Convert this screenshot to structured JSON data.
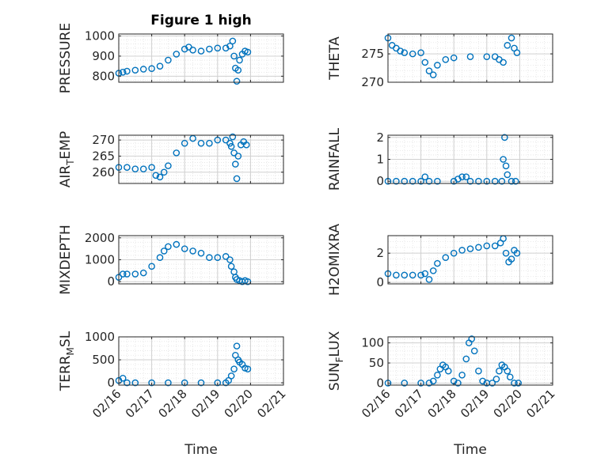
{
  "window": {},
  "colors": {
    "marker": "#0072BD",
    "axis": "#262626",
    "grid": "#d0d0d0",
    "background": "#ffffff"
  },
  "date_ticks": [
    "02/16",
    "02/17",
    "02/18",
    "02/19",
    "02/20",
    "02/21"
  ],
  "chart_data": [
    {
      "type": "scatter",
      "title": "Figure 1 high",
      "xlabel": "",
      "ylabel": "PRESSURE",
      "xlim": [
        "02/16",
        "02/21"
      ],
      "ylim": [
        770,
        1010
      ],
      "yticks": [
        800,
        900,
        1000
      ],
      "grid": true,
      "minor_grid": true,
      "xticklabels_shown": false,
      "x": [
        "02/16 00:00",
        "02/16 03:00",
        "02/16 06:00",
        "02/16 12:00",
        "02/16 18:00",
        "02/17 00:00",
        "02/17 06:00",
        "02/17 12:00",
        "02/17 18:00",
        "02/18 00:00",
        "02/18 03:00",
        "02/18 06:00",
        "02/18 12:00",
        "02/18 18:00",
        "02/19 00:00",
        "02/19 06:00",
        "02/19 09:00",
        "02/19 11:00",
        "02/19 12:00",
        "02/19 13:00",
        "02/19 14:00",
        "02/19 15:00",
        "02/19 16:00",
        "02/19 18:00",
        "02/19 20:00",
        "02/19 22:00"
      ],
      "y": [
        815,
        820,
        825,
        830,
        835,
        838,
        850,
        880,
        910,
        935,
        945,
        930,
        925,
        935,
        940,
        940,
        950,
        975,
        900,
        840,
        775,
        830,
        880,
        910,
        925,
        920
      ]
    },
    {
      "type": "scatter",
      "title": "",
      "xlabel": "",
      "ylabel": "THETA",
      "xlim": [
        "02/16",
        "02/21"
      ],
      "ylim": [
        270,
        278.5
      ],
      "yticks": [
        270,
        275
      ],
      "grid": true,
      "minor_grid": true,
      "xticklabels_shown": false,
      "x": [
        "02/16 00:00",
        "02/16 03:00",
        "02/16 06:00",
        "02/16 09:00",
        "02/16 12:00",
        "02/16 18:00",
        "02/17 00:00",
        "02/17 03:00",
        "02/17 06:00",
        "02/17 09:00",
        "02/17 12:00",
        "02/17 18:00",
        "02/18 00:00",
        "02/18 12:00",
        "02/19 00:00",
        "02/19 06:00",
        "02/19 09:00",
        "02/19 12:00",
        "02/19 15:00",
        "02/19 18:00",
        "02/19 20:00",
        "02/19 22:00"
      ],
      "y": [
        277.8,
        276.5,
        276,
        275.5,
        275.2,
        275,
        275.2,
        273.5,
        272,
        271.3,
        273,
        274,
        274.3,
        274.5,
        274.5,
        274.5,
        274,
        273.5,
        276.5,
        277.8,
        276,
        275.2
      ]
    },
    {
      "type": "scatter",
      "title": "",
      "xlabel": "",
      "ylabel": "AIR_TEMP",
      "xlim": [
        "02/16",
        "02/21"
      ],
      "ylim": [
        256.5,
        271.5
      ],
      "yticks": [
        260,
        265,
        270
      ],
      "grid": true,
      "minor_grid": true,
      "xticklabels_shown": false,
      "x": [
        "02/16 00:00",
        "02/16 06:00",
        "02/16 12:00",
        "02/16 18:00",
        "02/17 00:00",
        "02/17 03:00",
        "02/17 06:00",
        "02/17 09:00",
        "02/17 12:00",
        "02/17 18:00",
        "02/18 00:00",
        "02/18 06:00",
        "02/18 12:00",
        "02/18 18:00",
        "02/19 00:00",
        "02/19 06:00",
        "02/19 09:00",
        "02/19 10:00",
        "02/19 11:00",
        "02/19 12:00",
        "02/19 13:00",
        "02/19 14:00",
        "02/19 15:00",
        "02/19 17:00",
        "02/19 19:00",
        "02/19 21:00"
      ],
      "y": [
        261.5,
        261.5,
        261,
        261,
        261.5,
        259,
        258.5,
        260,
        262,
        266,
        269,
        270.5,
        269,
        269,
        270,
        270,
        269,
        268,
        271,
        266,
        262.5,
        258,
        265,
        268.5,
        269.5,
        268.5
      ]
    },
    {
      "type": "scatter",
      "title": "",
      "xlabel": "",
      "ylabel": "RAINFALL",
      "xlim": [
        "02/16",
        "02/21"
      ],
      "ylim": [
        -0.1,
        2.1
      ],
      "yticks": [
        0,
        1,
        2
      ],
      "grid": true,
      "minor_grid": true,
      "xticklabels_shown": false,
      "x": [
        "02/16 00:00",
        "02/16 06:00",
        "02/16 12:00",
        "02/16 18:00",
        "02/17 00:00",
        "02/17 03:00",
        "02/17 06:00",
        "02/17 12:00",
        "02/18 00:00",
        "02/18 03:00",
        "02/18 06:00",
        "02/18 09:00",
        "02/18 12:00",
        "02/18 18:00",
        "02/19 00:00",
        "02/19 06:00",
        "02/19 11:00",
        "02/19 12:00",
        "02/19 13:00",
        "02/19 14:00",
        "02/19 15:00",
        "02/19 18:00",
        "02/19 21:00"
      ],
      "y": [
        0,
        0,
        0,
        0,
        0,
        0.2,
        0,
        0,
        0,
        0.1,
        0.2,
        0.2,
        0,
        0,
        0,
        0,
        0,
        1.0,
        2.0,
        0.7,
        0.3,
        0,
        0
      ]
    },
    {
      "type": "scatter",
      "title": "",
      "xlabel": "",
      "ylabel": "MIXDEPTH",
      "xlim": [
        "02/16",
        "02/21"
      ],
      "ylim": [
        -100,
        2100
      ],
      "yticks": [
        0,
        1000,
        2000
      ],
      "grid": true,
      "minor_grid": true,
      "xticklabels_shown": false,
      "x": [
        "02/16 00:00",
        "02/16 03:00",
        "02/16 06:00",
        "02/16 12:00",
        "02/16 18:00",
        "02/17 00:00",
        "02/17 06:00",
        "02/17 09:00",
        "02/17 12:00",
        "02/17 18:00",
        "02/18 00:00",
        "02/18 06:00",
        "02/18 12:00",
        "02/18 18:00",
        "02/19 00:00",
        "02/19 06:00",
        "02/19 09:00",
        "02/19 10:00",
        "02/19 12:00",
        "02/19 13:00",
        "02/19 14:00",
        "02/19 16:00",
        "02/19 18:00",
        "02/19 20:00",
        "02/19 22:00"
      ],
      "y": [
        200,
        350,
        350,
        350,
        400,
        700,
        1100,
        1400,
        1600,
        1700,
        1500,
        1400,
        1300,
        1100,
        1100,
        1150,
        1000,
        700,
        450,
        200,
        100,
        50,
        0,
        50,
        0
      ]
    },
    {
      "type": "scatter",
      "title": "",
      "xlabel": "",
      "ylabel": "H2OMIXRA",
      "xlim": [
        "02/16",
        "02/21"
      ],
      "ylim": [
        -0.1,
        3.2
      ],
      "yticks": [
        0,
        2
      ],
      "grid": true,
      "minor_grid": true,
      "xticklabels_shown": false,
      "x": [
        "02/16 00:00",
        "02/16 06:00",
        "02/16 12:00",
        "02/16 18:00",
        "02/17 00:00",
        "02/17 03:00",
        "02/17 06:00",
        "02/17 09:00",
        "02/17 12:00",
        "02/17 18:00",
        "02/18 00:00",
        "02/18 06:00",
        "02/18 12:00",
        "02/18 18:00",
        "02/19 00:00",
        "02/19 06:00",
        "02/19 10:00",
        "02/19 12:00",
        "02/19 14:00",
        "02/19 16:00",
        "02/19 18:00",
        "02/19 20:00",
        "02/19 22:00"
      ],
      "y": [
        0.6,
        0.5,
        0.5,
        0.5,
        0.5,
        0.6,
        0.2,
        0.8,
        1.3,
        1.7,
        2.0,
        2.2,
        2.3,
        2.4,
        2.5,
        2.5,
        2.7,
        3.0,
        2.0,
        1.4,
        1.6,
        2.2,
        2.0
      ]
    },
    {
      "type": "scatter",
      "title": "",
      "xlabel": "Time",
      "ylabel": "TERR_MSL",
      "xlim": [
        "02/16",
        "02/21"
      ],
      "ylim": [
        -50,
        1000
      ],
      "yticks": [
        0,
        500,
        1000
      ],
      "grid": true,
      "minor_grid": true,
      "xticklabels_shown": true,
      "x": [
        "02/16 00:00",
        "02/16 03:00",
        "02/16 06:00",
        "02/16 12:00",
        "02/17 00:00",
        "02/17 12:00",
        "02/18 00:00",
        "02/18 12:00",
        "02/19 00:00",
        "02/19 06:00",
        "02/19 08:00",
        "02/19 10:00",
        "02/19 12:00",
        "02/19 13:00",
        "02/19 14:00",
        "02/19 15:00",
        "02/19 16:00",
        "02/19 18:00",
        "02/19 20:00",
        "02/19 22:00"
      ],
      "y": [
        50,
        100,
        0,
        0,
        0,
        0,
        0,
        0,
        0,
        0,
        50,
        150,
        300,
        600,
        800,
        500,
        450,
        400,
        320,
        300
      ]
    },
    {
      "type": "scatter",
      "title": "",
      "xlabel": "Time",
      "ylabel": "SUN_FLUX",
      "xlim": [
        "02/16",
        "02/21"
      ],
      "ylim": [
        -5,
        115
      ],
      "yticks": [
        0,
        50,
        100
      ],
      "grid": true,
      "minor_grid": true,
      "xticklabels_shown": true,
      "x": [
        "02/16 00:00",
        "02/16 12:00",
        "02/17 00:00",
        "02/17 06:00",
        "02/17 09:00",
        "02/17 12:00",
        "02/17 14:00",
        "02/17 16:00",
        "02/17 18:00",
        "02/17 20:00",
        "02/18 00:00",
        "02/18 03:00",
        "02/18 06:00",
        "02/18 09:00",
        "02/18 11:00",
        "02/18 13:00",
        "02/18 15:00",
        "02/18 18:00",
        "02/18 21:00",
        "02/19 00:00",
        "02/19 04:00",
        "02/19 07:00",
        "02/19 09:00",
        "02/19 11:00",
        "02/19 13:00",
        "02/19 15:00",
        "02/19 17:00",
        "02/19 20:00",
        "02/19 23:00"
      ],
      "y": [
        0,
        0,
        0,
        0,
        5,
        20,
        35,
        45,
        40,
        30,
        5,
        0,
        20,
        60,
        100,
        110,
        80,
        30,
        5,
        0,
        0,
        10,
        30,
        45,
        40,
        30,
        15,
        0,
        0
      ]
    }
  ]
}
